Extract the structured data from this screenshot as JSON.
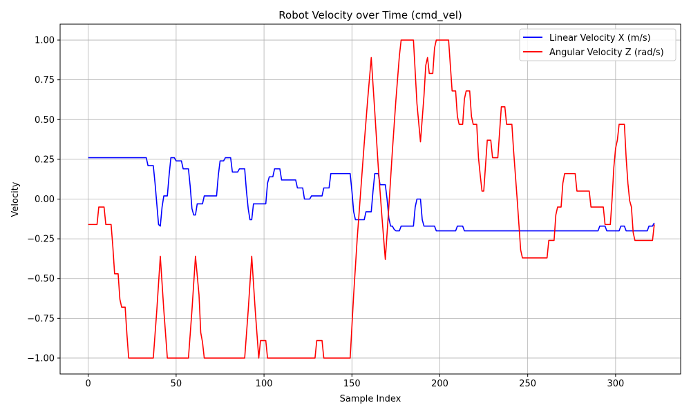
{
  "chart_data": {
    "type": "line",
    "title": "Robot Velocity over Time (cmd_vel)",
    "xlabel": "Sample Index",
    "ylabel": "Velocity",
    "xlim": [
      -16,
      337
    ],
    "ylim": [
      -1.1,
      1.1
    ],
    "xticks": [
      0,
      50,
      100,
      150,
      200,
      250,
      300
    ],
    "yticks": [
      -1.0,
      -0.75,
      -0.5,
      -0.25,
      0.0,
      0.25,
      0.5,
      0.75,
      1.0
    ],
    "xtick_labels": [
      "0",
      "50",
      "100",
      "150",
      "200",
      "250",
      "300"
    ],
    "ytick_labels": [
      "−1.00",
      "−0.75",
      "−0.50",
      "−0.25",
      "0.00",
      "0.25",
      "0.50",
      "0.75",
      "1.00"
    ],
    "grid": true,
    "legend_position": "top-right",
    "series": [
      {
        "name": "Linear Velocity X (m/s)",
        "color": "#0000ff",
        "points": [
          [
            0,
            0.26
          ],
          [
            33,
            0.26
          ],
          [
            34,
            0.21
          ],
          [
            37,
            0.21
          ],
          [
            38,
            0.1
          ],
          [
            40,
            -0.16
          ],
          [
            41,
            -0.17
          ],
          [
            42,
            -0.05
          ],
          [
            43,
            0.02
          ],
          [
            45,
            0.02
          ],
          [
            46,
            0.15
          ],
          [
            47,
            0.26
          ],
          [
            49,
            0.26
          ],
          [
            50,
            0.24
          ],
          [
            53,
            0.24
          ],
          [
            54,
            0.19
          ],
          [
            57,
            0.19
          ],
          [
            58,
            0.08
          ],
          [
            59,
            -0.06
          ],
          [
            60,
            -0.1
          ],
          [
            61,
            -0.1
          ],
          [
            62,
            -0.03
          ],
          [
            65,
            -0.03
          ],
          [
            66,
            0.02
          ],
          [
            73,
            0.02
          ],
          [
            74,
            0.15
          ],
          [
            75,
            0.24
          ],
          [
            77,
            0.24
          ],
          [
            78,
            0.26
          ],
          [
            81,
            0.26
          ],
          [
            82,
            0.17
          ],
          [
            85,
            0.17
          ],
          [
            86,
            0.19
          ],
          [
            89,
            0.19
          ],
          [
            90,
            0.05
          ],
          [
            91,
            -0.06
          ],
          [
            92,
            -0.13
          ],
          [
            93,
            -0.13
          ],
          [
            94,
            -0.03
          ],
          [
            101,
            -0.03
          ],
          [
            102,
            0.1
          ],
          [
            103,
            0.14
          ],
          [
            105,
            0.14
          ],
          [
            106,
            0.19
          ],
          [
            109,
            0.19
          ],
          [
            110,
            0.12
          ],
          [
            118,
            0.12
          ],
          [
            119,
            0.07
          ],
          [
            122,
            0.07
          ],
          [
            123,
            0.0
          ],
          [
            126,
            0.0
          ],
          [
            127,
            0.02
          ],
          [
            133,
            0.02
          ],
          [
            134,
            0.07
          ],
          [
            137,
            0.07
          ],
          [
            138,
            0.16
          ],
          [
            149,
            0.16
          ],
          [
            150,
            0.05
          ],
          [
            151,
            -0.08
          ],
          [
            152,
            -0.13
          ],
          [
            157,
            -0.13
          ],
          [
            158,
            -0.08
          ],
          [
            161,
            -0.08
          ],
          [
            162,
            0.05
          ],
          [
            163,
            0.16
          ],
          [
            165,
            0.16
          ],
          [
            166,
            0.09
          ],
          [
            169,
            0.09
          ],
          [
            170,
            0.0
          ],
          [
            171,
            -0.12
          ],
          [
            172,
            -0.17
          ],
          [
            173,
            -0.17
          ],
          [
            174,
            -0.19
          ],
          [
            175,
            -0.2
          ],
          [
            177,
            -0.2
          ],
          [
            178,
            -0.17
          ],
          [
            185,
            -0.17
          ],
          [
            186,
            -0.05
          ],
          [
            187,
            0.0
          ],
          [
            189,
            0.0
          ],
          [
            190,
            -0.13
          ],
          [
            191,
            -0.17
          ],
          [
            197,
            -0.17
          ],
          [
            198,
            -0.2
          ],
          [
            209,
            -0.2
          ],
          [
            210,
            -0.17
          ],
          [
            213,
            -0.17
          ],
          [
            214,
            -0.2
          ],
          [
            290,
            -0.2
          ],
          [
            291,
            -0.17
          ],
          [
            294,
            -0.17
          ],
          [
            295,
            -0.2
          ],
          [
            302,
            -0.2
          ],
          [
            303,
            -0.17
          ],
          [
            305,
            -0.17
          ],
          [
            306,
            -0.2
          ],
          [
            318,
            -0.2
          ],
          [
            319,
            -0.17
          ],
          [
            321,
            -0.17
          ],
          [
            322,
            -0.15
          ]
        ]
      },
      {
        "name": "Angular Velocity Z (rad/s)",
        "color": "#ff0000",
        "points": [
          [
            0,
            -0.16
          ],
          [
            5,
            -0.16
          ],
          [
            6,
            -0.05
          ],
          [
            9,
            -0.05
          ],
          [
            10,
            -0.16
          ],
          [
            13,
            -0.16
          ],
          [
            14,
            -0.3
          ],
          [
            15,
            -0.47
          ],
          [
            17,
            -0.47
          ],
          [
            18,
            -0.63
          ],
          [
            19,
            -0.68
          ],
          [
            21,
            -0.68
          ],
          [
            22,
            -0.85
          ],
          [
            23,
            -1.0
          ],
          [
            37,
            -1.0
          ],
          [
            39,
            -0.7
          ],
          [
            41,
            -0.36
          ],
          [
            43,
            -0.7
          ],
          [
            45,
            -1.0
          ],
          [
            57,
            -1.0
          ],
          [
            59,
            -0.7
          ],
          [
            61,
            -0.36
          ],
          [
            63,
            -0.6
          ],
          [
            64,
            -0.84
          ],
          [
            65,
            -0.9
          ],
          [
            66,
            -1.0
          ],
          [
            89,
            -1.0
          ],
          [
            91,
            -0.7
          ],
          [
            93,
            -0.36
          ],
          [
            95,
            -0.7
          ],
          [
            97,
            -1.0
          ],
          [
            98,
            -0.89
          ],
          [
            101,
            -0.89
          ],
          [
            102,
            -1.0
          ],
          [
            129,
            -1.0
          ],
          [
            130,
            -0.89
          ],
          [
            133,
            -0.89
          ],
          [
            134,
            -1.0
          ],
          [
            149,
            -1.0
          ],
          [
            151,
            -0.6
          ],
          [
            153,
            -0.25
          ],
          [
            155,
            0.05
          ],
          [
            157,
            0.35
          ],
          [
            159,
            0.63
          ],
          [
            161,
            0.89
          ],
          [
            163,
            0.55
          ],
          [
            165,
            0.2
          ],
          [
            167,
            -0.1
          ],
          [
            169,
            -0.38
          ],
          [
            171,
            -0.05
          ],
          [
            173,
            0.3
          ],
          [
            175,
            0.62
          ],
          [
            177,
            0.9
          ],
          [
            178,
            1.0
          ],
          [
            185,
            1.0
          ],
          [
            186,
            0.8
          ],
          [
            187,
            0.6
          ],
          [
            189,
            0.36
          ],
          [
            191,
            0.65
          ],
          [
            192,
            0.84
          ],
          [
            193,
            0.89
          ],
          [
            194,
            0.79
          ],
          [
            196,
            0.79
          ],
          [
            197,
            0.95
          ],
          [
            198,
            1.0
          ],
          [
            205,
            1.0
          ],
          [
            207,
            0.68
          ],
          [
            209,
            0.68
          ],
          [
            210,
            0.52
          ],
          [
            211,
            0.47
          ],
          [
            213,
            0.47
          ],
          [
            214,
            0.63
          ],
          [
            215,
            0.68
          ],
          [
            217,
            0.68
          ],
          [
            218,
            0.52
          ],
          [
            219,
            0.47
          ],
          [
            221,
            0.47
          ],
          [
            222,
            0.26
          ],
          [
            223,
            0.15
          ],
          [
            224,
            0.05
          ],
          [
            225,
            0.05
          ],
          [
            226,
            0.21
          ],
          [
            227,
            0.37
          ],
          [
            229,
            0.37
          ],
          [
            230,
            0.26
          ],
          [
            233,
            0.26
          ],
          [
            234,
            0.42
          ],
          [
            235,
            0.58
          ],
          [
            237,
            0.58
          ],
          [
            238,
            0.47
          ],
          [
            241,
            0.47
          ],
          [
            242,
            0.3
          ],
          [
            244,
            0.0
          ],
          [
            246,
            -0.32
          ],
          [
            247,
            -0.37
          ],
          [
            261,
            -0.37
          ],
          [
            262,
            -0.26
          ],
          [
            265,
            -0.26
          ],
          [
            266,
            -0.1
          ],
          [
            267,
            -0.05
          ],
          [
            269,
            -0.05
          ],
          [
            270,
            0.1
          ],
          [
            271,
            0.16
          ],
          [
            277,
            0.16
          ],
          [
            278,
            0.05
          ],
          [
            285,
            0.05
          ],
          [
            286,
            -0.05
          ],
          [
            293,
            -0.05
          ],
          [
            294,
            -0.16
          ],
          [
            297,
            -0.16
          ],
          [
            298,
            0.0
          ],
          [
            299,
            0.2
          ],
          [
            300,
            0.32
          ],
          [
            301,
            0.37
          ],
          [
            302,
            0.47
          ],
          [
            305,
            0.47
          ],
          [
            306,
            0.26
          ],
          [
            307,
            0.1
          ],
          [
            308,
            -0.01
          ],
          [
            309,
            -0.05
          ],
          [
            310,
            -0.21
          ],
          [
            311,
            -0.26
          ],
          [
            321,
            -0.26
          ],
          [
            322,
            -0.16
          ]
        ]
      }
    ]
  }
}
